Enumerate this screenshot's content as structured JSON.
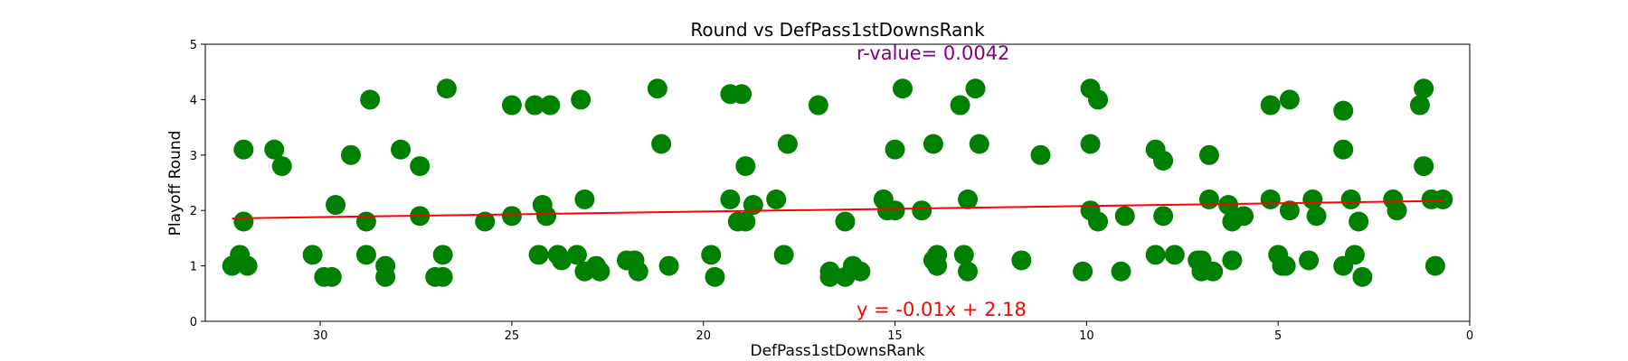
{
  "chart_data": {
    "type": "scatter",
    "title": "Round vs DefPass1stDownsRank",
    "xlabel": "DefPass1stDownsRank",
    "ylabel": "Playoff Round",
    "xlim": [
      33,
      0
    ],
    "ylim": [
      0,
      5
    ],
    "x_inverted": true,
    "xticks": [
      30,
      25,
      20,
      15,
      10,
      5,
      0
    ],
    "yticks": [
      0,
      1,
      2,
      3,
      4,
      5
    ],
    "grid": false,
    "point_color": "#008000",
    "line_color": "#ff0000",
    "annotation_r_color": "#800080",
    "annotation_eq_color": "#ff0000",
    "r_value_text": "r-value= 0.0042",
    "equation_text": "y = -0.01x + 2.18",
    "regression": {
      "slope": -0.01,
      "intercept": 2.18,
      "x_range": [
        32.3,
        0.7
      ]
    },
    "points": [
      [
        32.3,
        1.0
      ],
      [
        32.1,
        1.2
      ],
      [
        32.0,
        3.1
      ],
      [
        32.0,
        1.8
      ],
      [
        31.9,
        1.0
      ],
      [
        31.2,
        3.1
      ],
      [
        31.0,
        2.8
      ],
      [
        30.2,
        1.2
      ],
      [
        29.9,
        0.8
      ],
      [
        29.7,
        0.8
      ],
      [
        29.6,
        2.1
      ],
      [
        29.2,
        3.0
      ],
      [
        28.8,
        1.2
      ],
      [
        28.8,
        1.8
      ],
      [
        28.7,
        4.0
      ],
      [
        28.3,
        1.0
      ],
      [
        28.3,
        0.8
      ],
      [
        27.9,
        3.1
      ],
      [
        27.4,
        2.8
      ],
      [
        27.4,
        1.9
      ],
      [
        27.0,
        0.8
      ],
      [
        26.8,
        0.8
      ],
      [
        26.8,
        1.2
      ],
      [
        26.7,
        4.2
      ],
      [
        25.7,
        1.8
      ],
      [
        25.0,
        3.9
      ],
      [
        25.0,
        1.9
      ],
      [
        24.4,
        3.9
      ],
      [
        24.3,
        1.2
      ],
      [
        24.2,
        2.1
      ],
      [
        24.1,
        1.9
      ],
      [
        24.0,
        3.9
      ],
      [
        23.8,
        1.2
      ],
      [
        23.7,
        1.1
      ],
      [
        23.3,
        1.2
      ],
      [
        23.2,
        4.0
      ],
      [
        23.1,
        2.2
      ],
      [
        23.1,
        0.9
      ],
      [
        22.8,
        1.0
      ],
      [
        22.7,
        0.9
      ],
      [
        22.0,
        1.1
      ],
      [
        21.8,
        1.1
      ],
      [
        21.7,
        0.9
      ],
      [
        21.2,
        4.2
      ],
      [
        21.1,
        3.2
      ],
      [
        20.9,
        1.0
      ],
      [
        19.8,
        1.2
      ],
      [
        19.7,
        0.8
      ],
      [
        19.3,
        4.1
      ],
      [
        19.3,
        2.2
      ],
      [
        19.1,
        1.8
      ],
      [
        19.0,
        4.1
      ],
      [
        18.9,
        1.8
      ],
      [
        18.9,
        2.8
      ],
      [
        18.7,
        2.1
      ],
      [
        18.1,
        2.2
      ],
      [
        17.9,
        1.2
      ],
      [
        17.8,
        3.2
      ],
      [
        17.0,
        3.9
      ],
      [
        16.7,
        0.8
      ],
      [
        16.7,
        0.9
      ],
      [
        16.3,
        0.8
      ],
      [
        16.3,
        1.8
      ],
      [
        16.1,
        1.0
      ],
      [
        15.9,
        0.9
      ],
      [
        15.3,
        2.2
      ],
      [
        15.2,
        2.0
      ],
      [
        15.0,
        2.0
      ],
      [
        15.0,
        3.1
      ],
      [
        14.8,
        4.2
      ],
      [
        14.3,
        2.0
      ],
      [
        14.0,
        1.1
      ],
      [
        14.0,
        3.2
      ],
      [
        13.9,
        1.2
      ],
      [
        13.9,
        1.0
      ],
      [
        13.3,
        3.9
      ],
      [
        13.2,
        1.2
      ],
      [
        13.1,
        2.2
      ],
      [
        13.1,
        0.9
      ],
      [
        12.9,
        4.2
      ],
      [
        12.8,
        3.2
      ],
      [
        11.7,
        1.1
      ],
      [
        11.2,
        3.0
      ],
      [
        10.1,
        0.9
      ],
      [
        9.9,
        4.2
      ],
      [
        9.9,
        3.2
      ],
      [
        9.9,
        2.0
      ],
      [
        9.7,
        4.0
      ],
      [
        9.7,
        1.8
      ],
      [
        9.1,
        0.9
      ],
      [
        9.0,
        1.9
      ],
      [
        8.2,
        3.1
      ],
      [
        8.2,
        1.2
      ],
      [
        8.0,
        2.9
      ],
      [
        8.0,
        1.9
      ],
      [
        7.7,
        1.2
      ],
      [
        7.1,
        1.1
      ],
      [
        7.0,
        1.1
      ],
      [
        7.0,
        0.9
      ],
      [
        6.8,
        3.0
      ],
      [
        6.8,
        2.2
      ],
      [
        6.7,
        0.9
      ],
      [
        6.3,
        2.1
      ],
      [
        6.2,
        1.8
      ],
      [
        6.2,
        1.1
      ],
      [
        5.9,
        1.9
      ],
      [
        5.2,
        3.9
      ],
      [
        5.2,
        2.2
      ],
      [
        5.0,
        1.2
      ],
      [
        4.9,
        1.0
      ],
      [
        4.8,
        1.0
      ],
      [
        4.7,
        4.0
      ],
      [
        4.7,
        2.0
      ],
      [
        4.2,
        1.1
      ],
      [
        4.1,
        2.2
      ],
      [
        4.0,
        1.9
      ],
      [
        3.3,
        3.8
      ],
      [
        3.3,
        3.1
      ],
      [
        3.3,
        1.0
      ],
      [
        3.1,
        2.2
      ],
      [
        3.0,
        1.2
      ],
      [
        2.9,
        1.8
      ],
      [
        2.8,
        0.8
      ],
      [
        2.0,
        2.2
      ],
      [
        1.9,
        2.0
      ],
      [
        1.3,
        3.9
      ],
      [
        1.2,
        4.2
      ],
      [
        1.2,
        2.8
      ],
      [
        1.0,
        2.2
      ],
      [
        0.9,
        1.0
      ],
      [
        0.7,
        2.2
      ]
    ]
  }
}
